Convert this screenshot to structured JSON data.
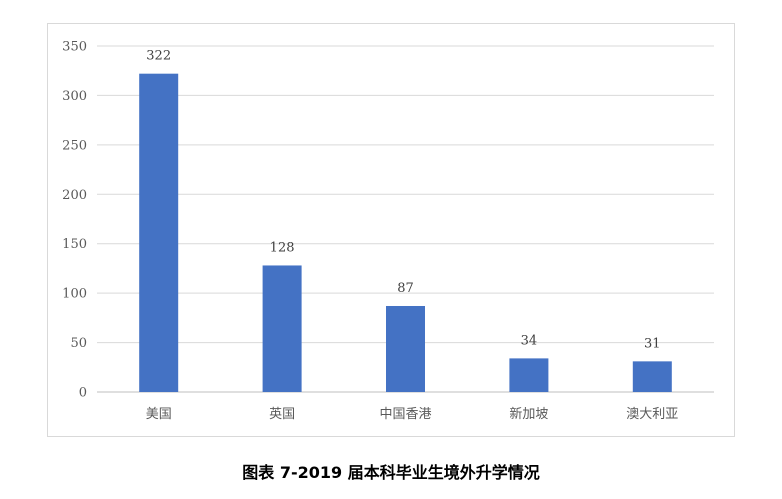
{
  "caption": "图表 7-2019 届本科毕业生境外升学情况",
  "colors": {
    "bar": "#4472C4"
  },
  "chart_data": {
    "type": "bar",
    "title": "",
    "xlabel": "",
    "ylabel": "",
    "categories": [
      "美国",
      "英国",
      "中国香港",
      "新加坡",
      "澳大利亚"
    ],
    "values": [
      322,
      128,
      87,
      34,
      31
    ],
    "ylim": [
      0,
      350
    ],
    "yticks": [
      0,
      50,
      100,
      150,
      200,
      250,
      300,
      350
    ],
    "data_labels": true,
    "grid": true,
    "legend": "none"
  }
}
